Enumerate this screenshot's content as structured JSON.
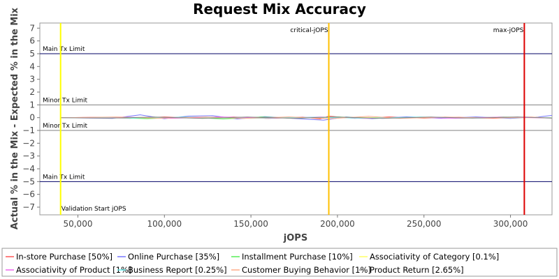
{
  "chart_data": {
    "type": "line",
    "title": "Request Mix Accuracy",
    "xlabel": "jOPS",
    "ylabel": "Actual % in the Mix - Expected % in the Mix",
    "xlim": [
      28000,
      324000
    ],
    "ylim": [
      -7.6,
      7.4
    ],
    "x_ticks": [
      50000,
      100000,
      150000,
      200000,
      250000,
      300000
    ],
    "x_tick_labels": [
      "50,000",
      "100,000",
      "150,000",
      "200,000",
      "250,000",
      "300,000"
    ],
    "y_ticks": [
      7,
      6,
      5,
      4,
      3,
      2,
      1,
      0,
      -1,
      -2,
      -3,
      -4,
      -5,
      -6,
      -7
    ],
    "y_tick_labels": [
      "7",
      "6",
      "5",
      "4",
      "3",
      "2",
      "1",
      "0",
      "−1",
      "−2",
      "−3",
      "−4",
      "−5",
      "−6",
      "−7"
    ],
    "grid": false,
    "legend_position": "bottom",
    "horizontal_lines": [
      {
        "label": "Main Tx Limit",
        "y": 5,
        "color": "#000066"
      },
      {
        "label": "Minor Tx Limit",
        "y": 1,
        "color": "#808080"
      },
      {
        "label": "Minor Tx Limit",
        "y": -1,
        "color": "#808080"
      },
      {
        "label": "Main Tx Limit",
        "y": -5,
        "color": "#000066"
      }
    ],
    "vertical_lines": [
      {
        "label": "Validation Start jOPS",
        "x": 40000,
        "color": "#ffff00"
      },
      {
        "label": "critical-jOPS",
        "x": 195000,
        "color": "#ffc000"
      },
      {
        "label": "max-jOPS",
        "x": 308000,
        "color": "#dd0000"
      }
    ],
    "series": [
      {
        "name": "In-store Purchase [50%]",
        "color": "#ff5555",
        "values": [
          [
            40000,
            0.0
          ],
          [
            60000,
            0.03
          ],
          [
            80000,
            -0.05
          ],
          [
            100000,
            0.06
          ],
          [
            120000,
            -0.04
          ],
          [
            140000,
            0.05
          ],
          [
            160000,
            -0.06
          ],
          [
            180000,
            0.04
          ],
          [
            190000,
            -0.1
          ],
          [
            195000,
            0.12
          ],
          [
            210000,
            -0.05
          ],
          [
            230000,
            0.06
          ],
          [
            250000,
            -0.04
          ],
          [
            270000,
            0.03
          ],
          [
            290000,
            -0.05
          ],
          [
            308000,
            0.04
          ],
          [
            324000,
            -0.02
          ]
        ]
      },
      {
        "name": "Online Purchase [35%]",
        "color": "#7777ff",
        "values": [
          [
            40000,
            0.0
          ],
          [
            70000,
            -0.06
          ],
          [
            86000,
            0.22
          ],
          [
            100000,
            -0.08
          ],
          [
            114000,
            0.12
          ],
          [
            128000,
            0.15
          ],
          [
            142000,
            -0.1
          ],
          [
            158000,
            0.08
          ],
          [
            176000,
            -0.07
          ],
          [
            192000,
            -0.2
          ],
          [
            205000,
            0.06
          ],
          [
            220000,
            -0.08
          ],
          [
            240000,
            0.07
          ],
          [
            260000,
            -0.05
          ],
          [
            280000,
            0.06
          ],
          [
            300000,
            -0.06
          ],
          [
            316000,
            0.05
          ],
          [
            324000,
            0.18
          ]
        ]
      },
      {
        "name": "Installment Purchase [10%]",
        "color": "#55ee55",
        "values": [
          [
            40000,
            0.0
          ],
          [
            66000,
            0.02
          ],
          [
            90000,
            -0.08
          ],
          [
            112000,
            0.04
          ],
          [
            134000,
            -0.1
          ],
          [
            156000,
            0.05
          ],
          [
            178000,
            -0.04
          ],
          [
            200000,
            0.06
          ],
          [
            222000,
            -0.05
          ],
          [
            246000,
            0.03
          ],
          [
            270000,
            -0.04
          ],
          [
            296000,
            0.05
          ],
          [
            324000,
            -0.02
          ]
        ]
      },
      {
        "name": "Associativity of Category [0.1%]",
        "color": "#ffff66",
        "values": [
          [
            40000,
            0.0
          ],
          [
            100000,
            0.01
          ],
          [
            160000,
            -0.01
          ],
          [
            220000,
            0.01
          ],
          [
            280000,
            -0.01
          ],
          [
            324000,
            0.0
          ]
        ]
      },
      {
        "name": "Associativity of Product [1%]",
        "color": "#ee66ee",
        "values": [
          [
            40000,
            0.0
          ],
          [
            76000,
            0.04
          ],
          [
            104000,
            -0.05
          ],
          [
            132000,
            0.06
          ],
          [
            162000,
            -0.04
          ],
          [
            190000,
            0.05
          ],
          [
            216000,
            -0.06
          ],
          [
            242000,
            0.04
          ],
          [
            268000,
            -0.05
          ],
          [
            294000,
            0.04
          ],
          [
            324000,
            -0.03
          ]
        ]
      },
      {
        "name": "Business Report [0.25%]",
        "color": "#66eeee",
        "values": [
          [
            40000,
            0.0
          ],
          [
            82000,
            -0.03
          ],
          [
            118000,
            0.04
          ],
          [
            150000,
            -0.05
          ],
          [
            186000,
            0.03
          ],
          [
            214000,
            -0.04
          ],
          [
            248000,
            0.05
          ],
          [
            282000,
            -0.03
          ],
          [
            310000,
            0.04
          ],
          [
            324000,
            -0.01
          ]
        ]
      },
      {
        "name": "Customer Buying Behavior [1%]",
        "color": "#ffaa88",
        "values": [
          [
            40000,
            0.0
          ],
          [
            72000,
            0.05
          ],
          [
            96000,
            -0.04
          ],
          [
            124000,
            0.05
          ],
          [
            146000,
            -0.06
          ],
          [
            172000,
            0.06
          ],
          [
            196000,
            -0.08
          ],
          [
            218000,
            0.1
          ],
          [
            236000,
            -0.06
          ],
          [
            262000,
            0.05
          ],
          [
            286000,
            -0.04
          ],
          [
            312000,
            0.05
          ],
          [
            324000,
            -0.03
          ]
        ]
      },
      {
        "name": "Product Return [2.65%]",
        "color": "#888888",
        "values": [
          [
            40000,
            0.0
          ],
          [
            68000,
            -0.04
          ],
          [
            94000,
            0.05
          ],
          [
            122000,
            -0.06
          ],
          [
            148000,
            0.05
          ],
          [
            174000,
            -0.05
          ],
          [
            198000,
            0.06
          ],
          [
            226000,
            -0.06
          ],
          [
            254000,
            0.05
          ],
          [
            278000,
            -0.04
          ],
          [
            304000,
            0.06
          ],
          [
            324000,
            -0.04
          ]
        ]
      }
    ]
  }
}
